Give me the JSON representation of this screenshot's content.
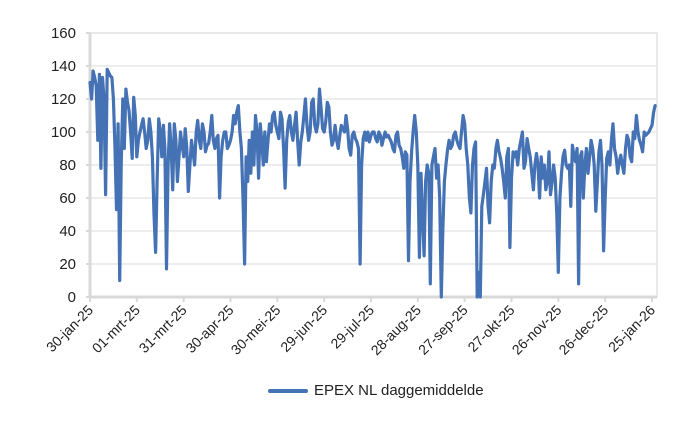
{
  "chart_data": {
    "type": "line",
    "title": "",
    "xlabel": "",
    "ylabel": "",
    "ylim": [
      0,
      160
    ],
    "yticks": [
      0,
      20,
      40,
      60,
      80,
      100,
      120,
      140,
      160
    ],
    "grid": true,
    "legend_position": "bottom",
    "x_tick_labels": [
      "30-jan-25",
      "01-mrt-25",
      "31-mrt-25",
      "30-apr-25",
      "30-mei-25",
      "29-jun-25",
      "29-jul-25",
      "28-aug-25",
      "27-sep-25",
      "27-okt-25",
      "26-nov-25",
      "26-dec-25",
      "25-jan-26"
    ],
    "x_tick_step_days": 30,
    "series": [
      {
        "name": "EPEX NL daggemiddelde",
        "color": "#4472b4",
        "start_date": "30-jan-25",
        "values": [
          130,
          120,
          137,
          133,
          128,
          95,
          135,
          78,
          133,
          120,
          62,
          138,
          136,
          134,
          133,
          120,
          90,
          53,
          105,
          10,
          80,
          120,
          90,
          126,
          118,
          113,
          100,
          84,
          121,
          110,
          85,
          95,
          100,
          104,
          108,
          100,
          90,
          95,
          108,
          100,
          85,
          50,
          27,
          70,
          108,
          100,
          85,
          104,
          90,
          17,
          80,
          105,
          90,
          65,
          105,
          95,
          70,
          85,
          100,
          92,
          85,
          102,
          90,
          64,
          80,
          95,
          88,
          80,
          100,
          107,
          95,
          90,
          105,
          100,
          88,
          92,
          93,
          100,
          110,
          95,
          90,
          96,
          98,
          60,
          85,
          95,
          100,
          100,
          90,
          92,
          95,
          100,
          110,
          105,
          112,
          116,
          100,
          90,
          60,
          20,
          85,
          70,
          95,
          75,
          100,
          80,
          110,
          100,
          72,
          105,
          95,
          80,
          100,
          82,
          95,
          105,
          100,
          110,
          112,
          104,
          100,
          96,
          112,
          108,
          90,
          66,
          95,
          106,
          110,
          100,
          95,
          104,
          112,
          95,
          80,
          94,
          100,
          110,
          120,
          104,
          95,
          100,
          118,
          120,
          104,
          100,
          105,
          126,
          115,
          102,
          100,
          106,
          118,
          115,
          100,
          92,
          95,
          104,
          95,
          90,
          98,
          104,
          102,
          100,
          110,
          102,
          90,
          86,
          98,
          100,
          96,
          94,
          90,
          20,
          80,
          96,
          100,
          95,
          100,
          94,
          98,
          100,
          100,
          96,
          94,
          100,
          98,
          92,
          96,
          100,
          97,
          98,
          96,
          94,
          90,
          88,
          98,
          100,
          92,
          90,
          85,
          78,
          88,
          86,
          22,
          70,
          88,
          100,
          110,
          100,
          80,
          24,
          75,
          50,
          25,
          70,
          80,
          75,
          8,
          80,
          85,
          90,
          72,
          80,
          60,
          0,
          40,
          70,
          80,
          89,
          95,
          90,
          92,
          98,
          100,
          95,
          92,
          90,
          100,
          110,
          105,
          90,
          80,
          60,
          51,
          80,
          90,
          94,
          0,
          15,
          0,
          55,
          62,
          70,
          78,
          55,
          45,
          70,
          80,
          78,
          90,
          95,
          88,
          84,
          78,
          70,
          60,
          85,
          90,
          30,
          72,
          88,
          85,
          88,
          80,
          90,
          95,
          100,
          78,
          82,
          96,
          90,
          85,
          75,
          65,
          80,
          87,
          80,
          60,
          85,
          72,
          80,
          65,
          70,
          88,
          62,
          70,
          80,
          72,
          50,
          15,
          60,
          75,
          85,
          89,
          80,
          78,
          80,
          55,
          92,
          86,
          82,
          90,
          8,
          85,
          88,
          60,
          80,
          90,
          75,
          85,
          95,
          90,
          80,
          52,
          70,
          88,
          95,
          80,
          28,
          60,
          84,
          88,
          80,
          95,
          105,
          90,
          85,
          75,
          82,
          86,
          80,
          75,
          90,
          98,
          95,
          85,
          82,
          100,
          96,
          110,
          100,
          95,
          92,
          88,
          100,
          98,
          99,
          100,
          102,
          104,
          112,
          116
        ]
      }
    ]
  },
  "legend": {
    "label": "EPEX NL daggemiddelde",
    "color": "#4472b4"
  },
  "colors": {
    "line": "#4472b4",
    "grid": "#e2e2e2",
    "axis": "#d9d9d9"
  }
}
